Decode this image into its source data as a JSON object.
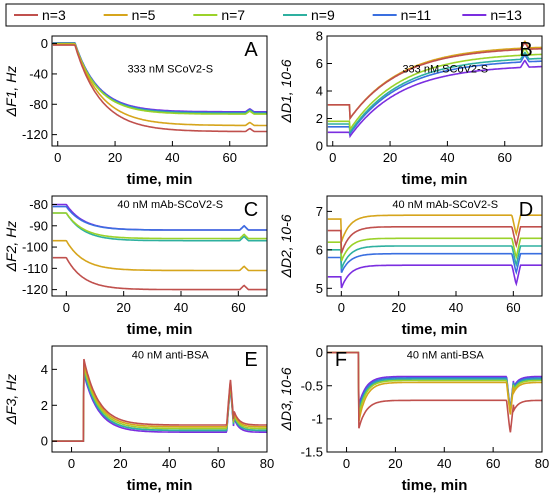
{
  "legend": [
    {
      "label": "n=3",
      "color": "#c0504d"
    },
    {
      "label": "n=5",
      "color": "#d6a51c"
    },
    {
      "label": "n=7",
      "color": "#9bd22a"
    },
    {
      "label": "n=9",
      "color": "#2eb0a0"
    },
    {
      "label": "n=11",
      "color": "#3a6fe0"
    },
    {
      "label": "n=13",
      "color": "#7b2ee0"
    }
  ],
  "chart_data": [
    {
      "panel": "A",
      "type": "line",
      "annotation": "333 nM SCoV2-S",
      "xlabel": "time, min",
      "ylabel": "ΔF1, Hz",
      "xlim": [
        -2,
        73
      ],
      "ylim": [
        -135,
        10
      ],
      "xticks": [
        0,
        20,
        40,
        60
      ],
      "yticks": [
        0,
        -40,
        -80,
        -120
      ],
      "step": 6,
      "spike": 67,
      "spike_amp": 4,
      "series": [
        {
          "name": "n=3",
          "before": -2,
          "after": -116,
          "tau": 9
        },
        {
          "name": "n=5",
          "before": -1,
          "after": -108,
          "tau": 9
        },
        {
          "name": "n=7",
          "before": 0,
          "after": -93,
          "tau": 8
        },
        {
          "name": "n=9",
          "before": 0,
          "after": -92,
          "tau": 8
        },
        {
          "name": "n=11",
          "before": 1,
          "after": -91,
          "tau": 8
        },
        {
          "name": "n=13",
          "before": 1,
          "after": -90,
          "tau": 8
        }
      ]
    },
    {
      "panel": "B",
      "type": "line",
      "annotation": "333 nM SCoV2-S",
      "xlabel": "time, min",
      "ylabel": "ΔD1, 10-6",
      "xlim": [
        -2,
        73
      ],
      "ylim": [
        0,
        8
      ],
      "xticks": [
        0,
        20,
        40,
        60
      ],
      "yticks": [
        0,
        2,
        4,
        6,
        8
      ],
      "step": 6,
      "spike": 67,
      "spike_amp": 0.5,
      "series": [
        {
          "name": "n=3",
          "before": 3.0,
          "after": 7.2,
          "dip": 2.0,
          "tau": 18
        },
        {
          "name": "n=5",
          "before": 3.0,
          "after": 7.3,
          "dip": 2.0,
          "tau": 18
        },
        {
          "name": "n=7",
          "before": 1.8,
          "after": 6.8,
          "dip": 1.2,
          "tau": 18
        },
        {
          "name": "n=9",
          "before": 1.6,
          "after": 6.5,
          "dip": 1.0,
          "tau": 18
        },
        {
          "name": "n=11",
          "before": 1.4,
          "after": 6.3,
          "dip": 0.9,
          "tau": 18
        },
        {
          "name": "n=13",
          "before": 1.0,
          "after": 5.9,
          "dip": 0.7,
          "tau": 18
        }
      ]
    },
    {
      "panel": "C",
      "type": "line",
      "annotation": "40 nM mAb-SCoV2-S",
      "xlabel": "time, min",
      "ylabel": "ΔF2, Hz",
      "xlim": [
        -5,
        70
      ],
      "ylim": [
        -123,
        -76
      ],
      "xticks": [
        0,
        20,
        40,
        60
      ],
      "yticks": [
        -80,
        -90,
        -100,
        -110,
        -120
      ],
      "step": 0,
      "spike": 62,
      "spike_amp": 2,
      "series": [
        {
          "name": "n=3",
          "before": -105,
          "after": -120,
          "tau": 6
        },
        {
          "name": "n=5",
          "before": -97,
          "after": -111,
          "tau": 6
        },
        {
          "name": "n=7",
          "before": -84,
          "after": -96,
          "tau": 6
        },
        {
          "name": "n=9",
          "before": -84,
          "after": -97,
          "tau": 6
        },
        {
          "name": "n=11",
          "before": -81,
          "after": -92,
          "tau": 6
        },
        {
          "name": "n=13",
          "before": -80,
          "after": -92,
          "tau": 6
        }
      ]
    },
    {
      "panel": "D",
      "type": "line",
      "annotation": "40 nM mAb-SCoV2-S",
      "xlabel": "time, min",
      "ylabel": "ΔD2, 10-6",
      "xlim": [
        -5,
        70
      ],
      "ylim": [
        4.8,
        7.4
      ],
      "xticks": [
        0,
        20,
        40,
        60
      ],
      "yticks": [
        5,
        6,
        7
      ],
      "step": 0,
      "spike": 61,
      "spike_amp": -0.5,
      "series": [
        {
          "name": "n=3",
          "before": 6.5,
          "after": 6.6,
          "dip": 5.9,
          "tau": 3
        },
        {
          "name": "n=5",
          "before": 6.8,
          "after": 6.9,
          "dip": 6.2,
          "tau": 3
        },
        {
          "name": "n=7",
          "before": 6.2,
          "after": 6.3,
          "dip": 5.7,
          "tau": 3
        },
        {
          "name": "n=9",
          "before": 6.0,
          "after": 6.1,
          "dip": 5.5,
          "tau": 3
        },
        {
          "name": "n=11",
          "before": 5.8,
          "after": 5.9,
          "dip": 5.4,
          "tau": 3
        },
        {
          "name": "n=13",
          "before": 5.3,
          "after": 5.6,
          "dip": 5.0,
          "tau": 3
        }
      ]
    },
    {
      "panel": "E",
      "type": "line",
      "annotation": "40 nM anti-BSA",
      "xlabel": "time, min",
      "ylabel": "ΔF3, Hz",
      "xlim": [
        -8,
        80
      ],
      "ylim": [
        -0.6,
        5.3
      ],
      "xticks": [
        0,
        20,
        40,
        60,
        80
      ],
      "yticks": [
        0,
        2,
        4
      ],
      "step": 5,
      "spike": 65,
      "spike_amp": 2.6,
      "series": [
        {
          "name": "n=3",
          "before": 0.0,
          "peak": 4.6,
          "after": 0.9,
          "tau": 6
        },
        {
          "name": "n=5",
          "before": 0.0,
          "peak": 4.4,
          "after": 0.8,
          "tau": 6
        },
        {
          "name": "n=7",
          "before": 0.0,
          "peak": 4.2,
          "after": 0.7,
          "tau": 6
        },
        {
          "name": "n=9",
          "before": 0.0,
          "peak": 4.0,
          "after": 0.6,
          "tau": 6
        },
        {
          "name": "n=11",
          "before": 0.0,
          "peak": 3.9,
          "after": 0.6,
          "tau": 6
        },
        {
          "name": "n=13",
          "before": 0.0,
          "peak": 3.8,
          "after": 0.5,
          "tau": 6
        }
      ]
    },
    {
      "panel": "F",
      "type": "line",
      "annotation": "40 nM anti-BSA",
      "xlabel": "time, min",
      "ylabel": "ΔD3, 10-6",
      "xlim": [
        -8,
        80
      ],
      "ylim": [
        -1.5,
        0.1
      ],
      "xticks": [
        0,
        20,
        40,
        60,
        80
      ],
      "yticks": [
        0.0,
        -0.5,
        -1.0,
        -1.5
      ],
      "step": 5,
      "spike": 67,
      "spike_amp": -0.5,
      "series": [
        {
          "name": "n=3",
          "before": 0.0,
          "peak": -1.15,
          "after": -0.72,
          "tau": 3
        },
        {
          "name": "n=5",
          "before": 0.0,
          "peak": -1.05,
          "after": -0.45,
          "tau": 3
        },
        {
          "name": "n=7",
          "before": 0.0,
          "peak": -0.95,
          "after": -0.42,
          "tau": 3
        },
        {
          "name": "n=9",
          "before": 0.0,
          "peak": -0.9,
          "after": -0.4,
          "tau": 3
        },
        {
          "name": "n=11",
          "before": 0.0,
          "peak": -0.85,
          "after": -0.38,
          "tau": 3
        },
        {
          "name": "n=13",
          "before": 0.0,
          "peak": -0.8,
          "after": -0.36,
          "tau": 3
        }
      ]
    }
  ]
}
